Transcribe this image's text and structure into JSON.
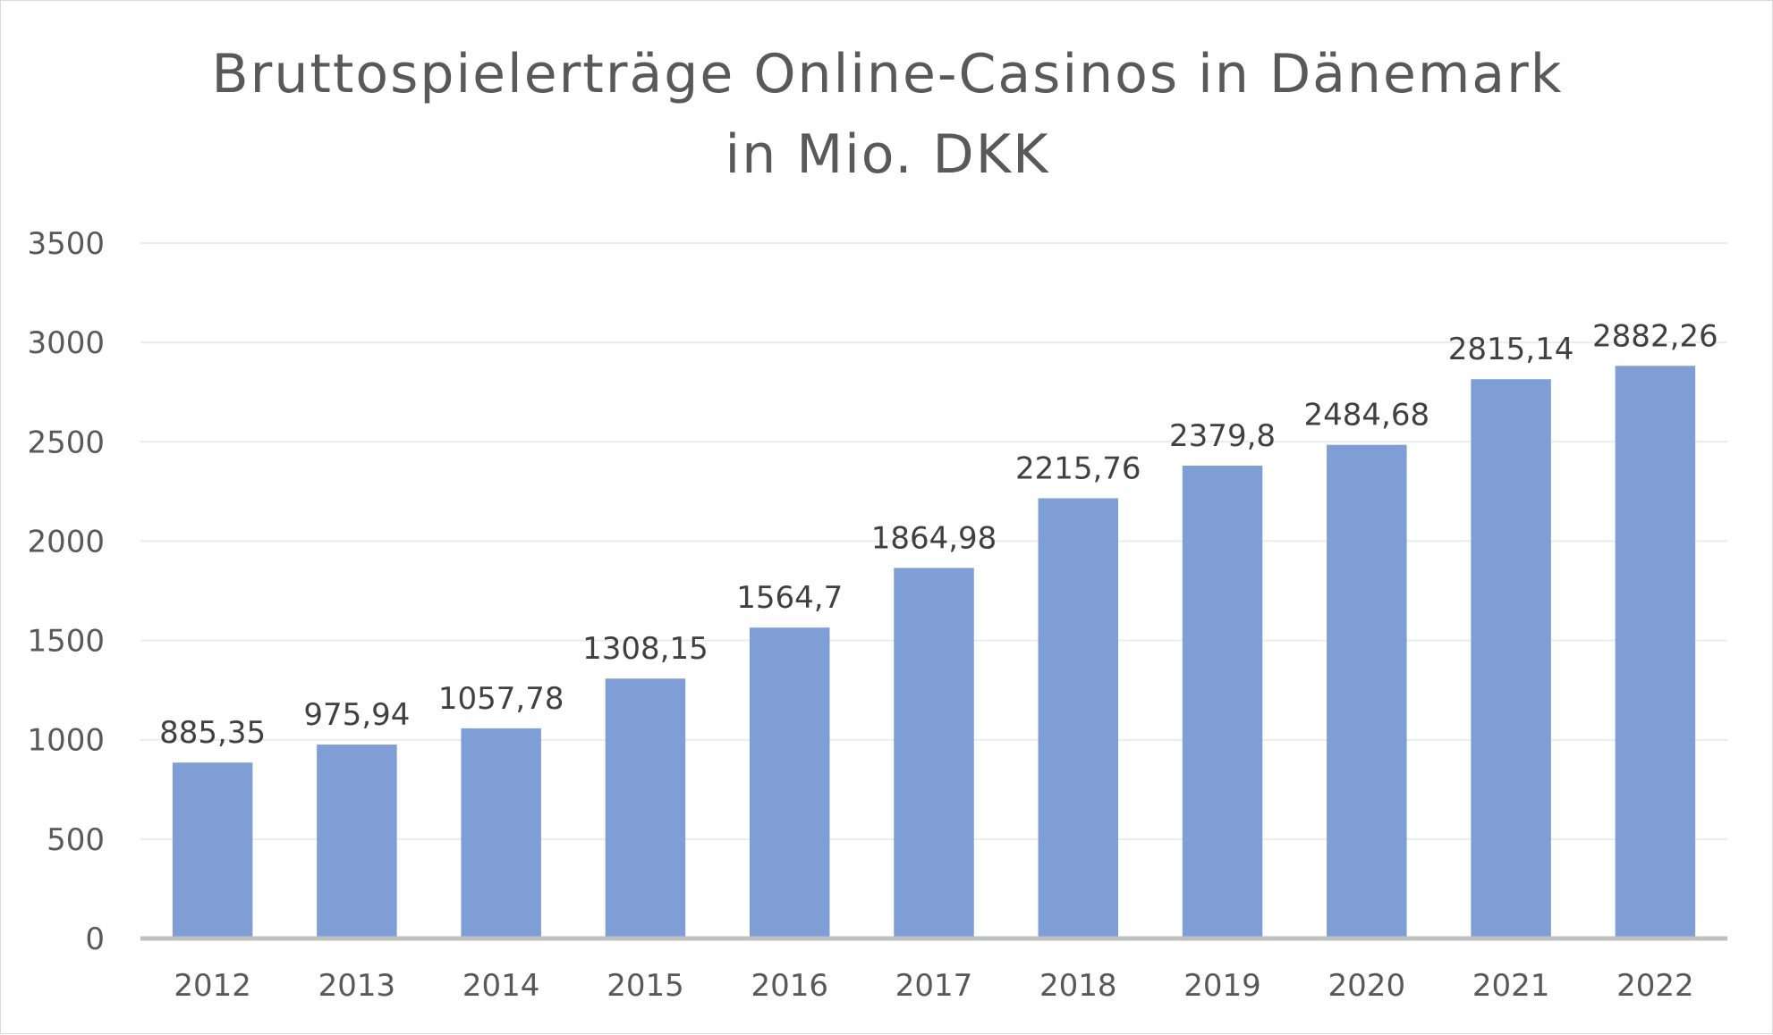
{
  "chart_data": {
    "type": "bar",
    "title_lines": [
      "Bruttospielerträge Online-Casinos in Dänemark",
      "in Mio. DKK"
    ],
    "categories": [
      "2012",
      "2013",
      "2014",
      "2015",
      "2016",
      "2017",
      "2018",
      "2019",
      "2020",
      "2021",
      "2022"
    ],
    "values": [
      885.35,
      975.94,
      1057.78,
      1308.15,
      1564.7,
      1864.98,
      2215.76,
      2379.8,
      2484.68,
      2815.14,
      2882.26
    ],
    "data_labels": [
      "885,35",
      "975,94",
      "1057,78",
      "1308,15",
      "1564,7",
      "1864,98",
      "2215,76",
      "2379,8",
      "2484,68",
      "2815,14",
      "2882,26"
    ],
    "y_ticks": [
      0,
      500,
      1000,
      1500,
      2000,
      2500,
      3000,
      3500
    ],
    "ylim": [
      0,
      3500
    ],
    "grid": true,
    "legend": "none",
    "bar_color": "#7f9ed6"
  }
}
